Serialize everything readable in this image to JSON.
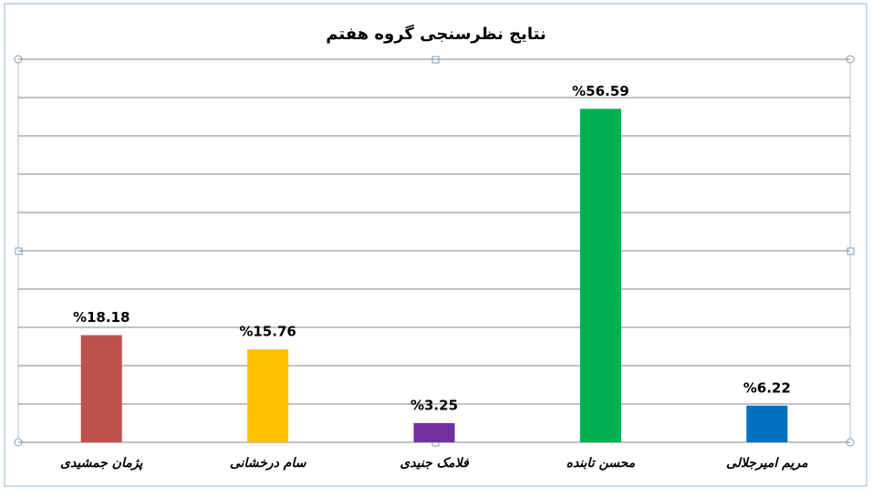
{
  "chart_data": {
    "type": "bar",
    "title": "نتایج نظرسنجی گروه هفتم",
    "categories": [
      "پژمان جمشیدی",
      "سام درخشانی",
      "فلامک جنیدی",
      "محسن تابنده",
      "مریم امیرجلالی"
    ],
    "values": [
      18.18,
      15.76,
      3.25,
      56.59,
      6.22
    ],
    "value_labels": [
      "%18.18",
      "%15.76",
      "%3.25",
      "%56.59",
      "%6.22"
    ],
    "colors": [
      "#c0504d",
      "#ffc000",
      "#7030a0",
      "#00b050",
      "#0070c0"
    ],
    "ylim": [
      0,
      65
    ],
    "yticks": [
      0,
      6.5,
      13,
      19.5,
      26,
      32.5,
      39,
      45.5,
      52,
      58.5,
      65
    ],
    "tick_labels": false,
    "grid": true
  }
}
